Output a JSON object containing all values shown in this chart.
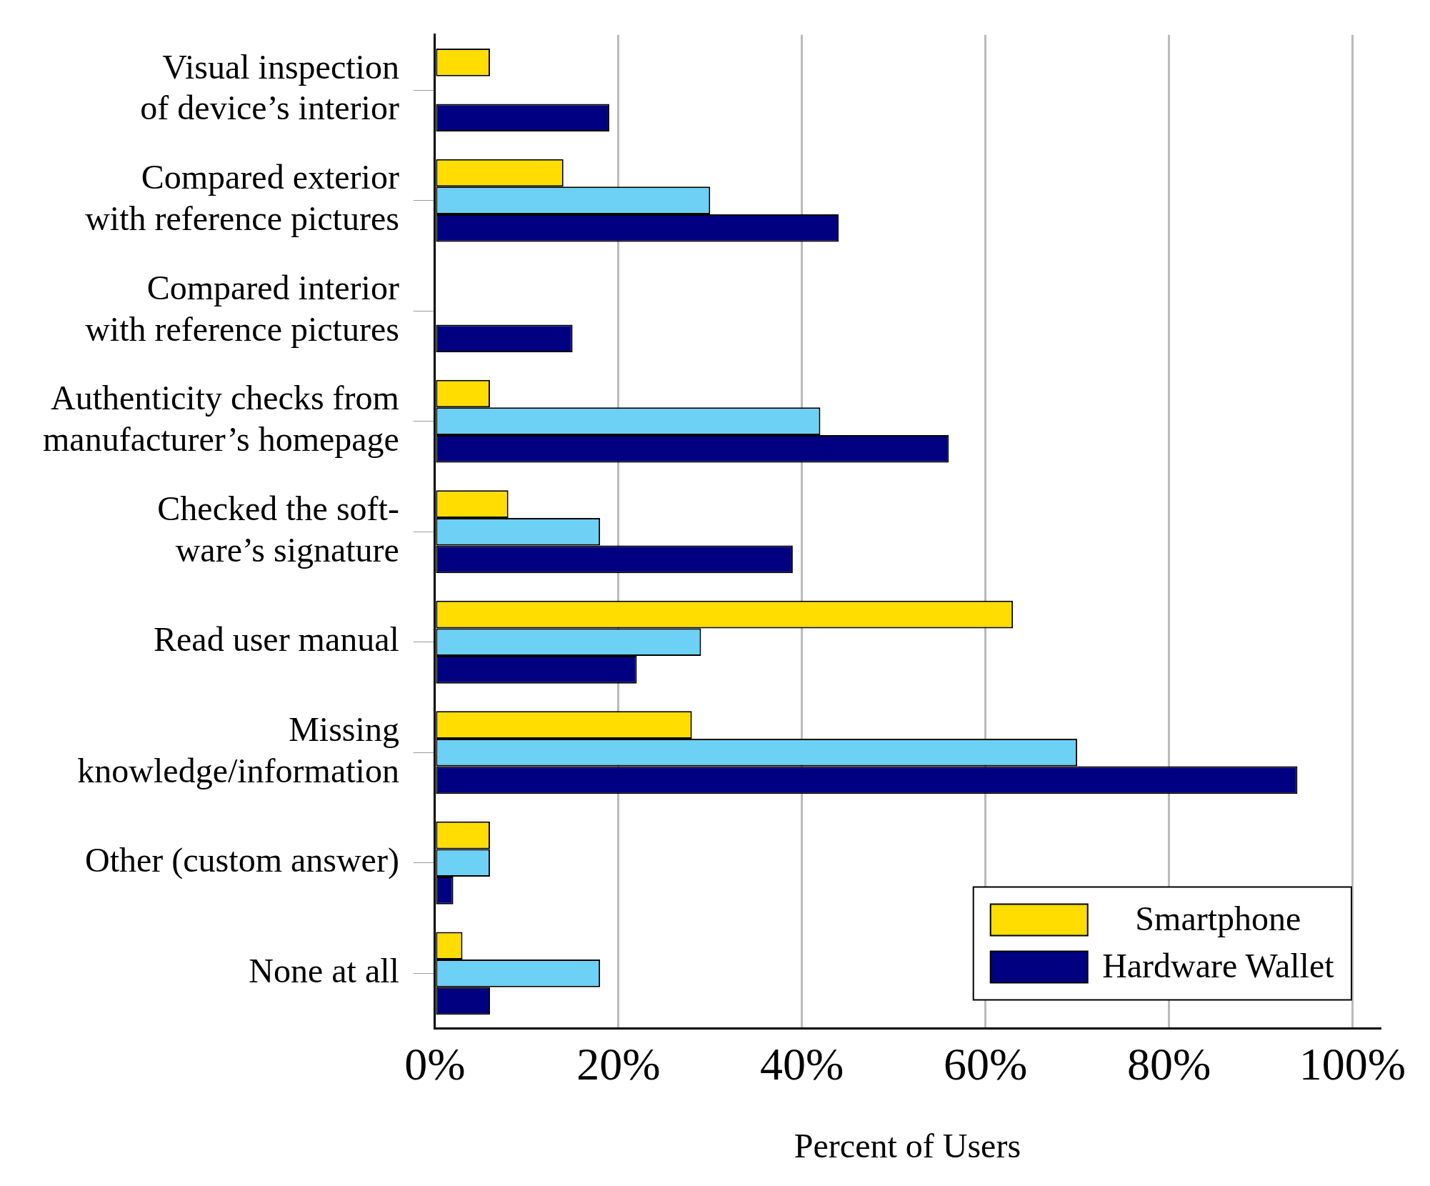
{
  "chart_data": {
    "type": "bar",
    "orientation": "horizontal",
    "xlabel": "Percent of Users",
    "categories": [
      "Visual inspection\nof device’s interior",
      "Compared exterior\nwith reference pictures",
      "Compared interior\nwith reference pictures",
      "Authenticity checks from\nmanufacturer’s homepage",
      "Checked the soft-\nware’s signature",
      "Read user manual",
      "Missing\nknowledge/information",
      "Other (custom answer)",
      "None at all"
    ],
    "series": [
      {
        "name": "Smartphone",
        "color": "#ffdd00",
        "values": [
          6,
          14,
          null,
          6,
          8,
          63,
          28,
          6,
          3
        ]
      },
      {
        "color": "#6dd0f5",
        "values": [
          null,
          30,
          null,
          42,
          18,
          29,
          70,
          6,
          18
        ]
      },
      {
        "name": "Hardware Wallet",
        "color": "#000080",
        "values": [
          19,
          44,
          15,
          56,
          39,
          22,
          94,
          2,
          6
        ]
      }
    ],
    "xlim": [
      0,
      103
    ],
    "xticks": [
      {
        "value": 0,
        "label": "0%"
      },
      {
        "value": 20,
        "label": "20%"
      },
      {
        "value": 40,
        "label": "40%"
      },
      {
        "value": 60,
        "label": "60%"
      },
      {
        "value": 80,
        "label": "80%"
      },
      {
        "value": 100,
        "label": "100%"
      }
    ],
    "grid": "x",
    "legend": "bottom right"
  }
}
